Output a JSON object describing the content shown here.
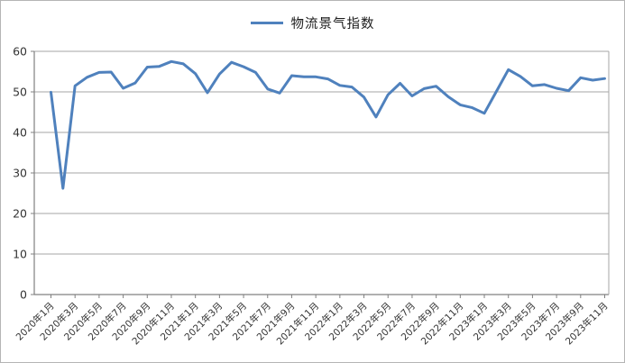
{
  "legend": {
    "label": "物流景气指数"
  },
  "colors": {
    "series": "#4F81BD",
    "gridline": "#A6A6A6",
    "axis": "#808080",
    "tick_text": "#333333",
    "chart_border": "#B5B5B5"
  },
  "chart_data": {
    "type": "line",
    "title": "物流景气指数",
    "xlabel": "",
    "ylabel": "",
    "ylim": [
      0,
      60
    ],
    "yticks": [
      0,
      10,
      20,
      30,
      40,
      50,
      60
    ],
    "grid": "horizontal",
    "legend_position": "top-center",
    "x": [
      "2020年1月",
      "2020年2月",
      "2020年3月",
      "2020年4月",
      "2020年5月",
      "2020年6月",
      "2020年7月",
      "2020年8月",
      "2020年9月",
      "2020年10月",
      "2020年11月",
      "2020年12月",
      "2021年1月",
      "2021年2月",
      "2021年3月",
      "2021年4月",
      "2021年5月",
      "2021年6月",
      "2021年7月",
      "2021年8月",
      "2021年9月",
      "2021年10月",
      "2021年11月",
      "2021年12月",
      "2022年1月",
      "2022年2月",
      "2022年3月",
      "2022年4月",
      "2022年5月",
      "2022年6月",
      "2022年7月",
      "2022年8月",
      "2022年9月",
      "2022年10月",
      "2022年11月",
      "2022年12月",
      "2023年1月",
      "2023年2月",
      "2023年3月",
      "2023年4月",
      "2023年5月",
      "2023年6月",
      "2023年7月",
      "2023年8月",
      "2023年9月",
      "2023年10月",
      "2023年11月"
    ],
    "x_tick_labels": [
      "2020年1月",
      "2020年3月",
      "2020年5月",
      "2020年7月",
      "2020年9月",
      "2020年11月",
      "2021年1月",
      "2021年3月",
      "2021年5月",
      "2021年7月",
      "2021年9月",
      "2021年11月",
      "2022年1月",
      "2022年3月",
      "2022年5月",
      "2022年7月",
      "2022年9月",
      "2022年11月",
      "2023年1月",
      "2023年3月",
      "2023年5月",
      "2023年7月",
      "2023年9月",
      "2023年11月"
    ],
    "series": [
      {
        "name": "物流景气指数",
        "color": "#4F81BD",
        "values": [
          49.9,
          26.2,
          51.5,
          53.6,
          54.8,
          54.9,
          50.9,
          52.2,
          56.1,
          56.3,
          57.5,
          56.9,
          54.5,
          49.8,
          54.4,
          57.3,
          56.2,
          54.8,
          50.7,
          49.7,
          54.0,
          53.7,
          53.7,
          53.2,
          51.6,
          51.2,
          48.7,
          43.8,
          49.3,
          52.1,
          49.0,
          50.8,
          51.4,
          48.8,
          46.8,
          46.1,
          44.7,
          50.1,
          55.5,
          53.8,
          51.5,
          51.8,
          50.9,
          50.3,
          53.5,
          52.9,
          53.3
        ]
      }
    ]
  }
}
